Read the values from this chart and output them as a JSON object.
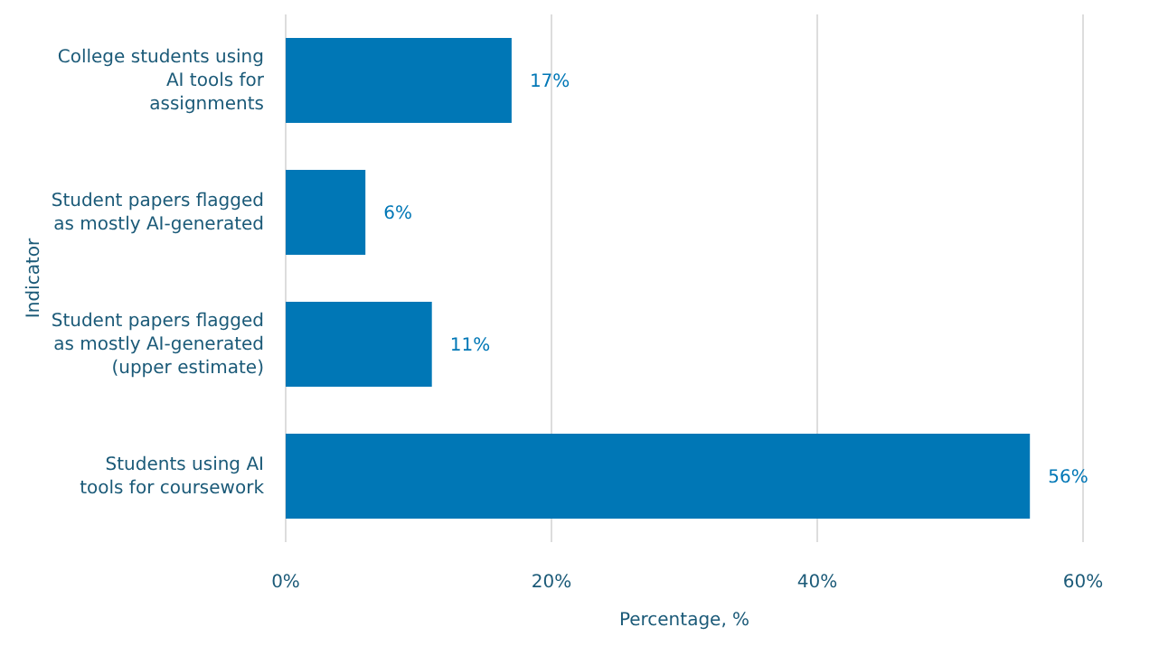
{
  "chart_data": {
    "type": "bar",
    "orientation": "horizontal",
    "xlabel": "Percentage, %",
    "ylabel": "Indicator",
    "categories": [
      "College students using AI tools for assignments",
      "Student papers flagged as mostly AI-generated",
      "Student papers flagged as mostly AI-generated (upper estimate)",
      "Students using AI tools for coursework"
    ],
    "values": [
      17,
      6,
      11,
      56
    ],
    "value_labels": [
      "17%",
      "6%",
      "11%",
      "56%"
    ],
    "color": "#0077b6",
    "xlim": [
      0,
      60
    ],
    "xticks": [
      {
        "value": 0,
        "label": "0%"
      },
      {
        "value": 20,
        "label": "20%"
      },
      {
        "value": 40,
        "label": "40%"
      },
      {
        "value": 60,
        "label": "60%"
      }
    ],
    "grid": "x",
    "legend": false
  }
}
